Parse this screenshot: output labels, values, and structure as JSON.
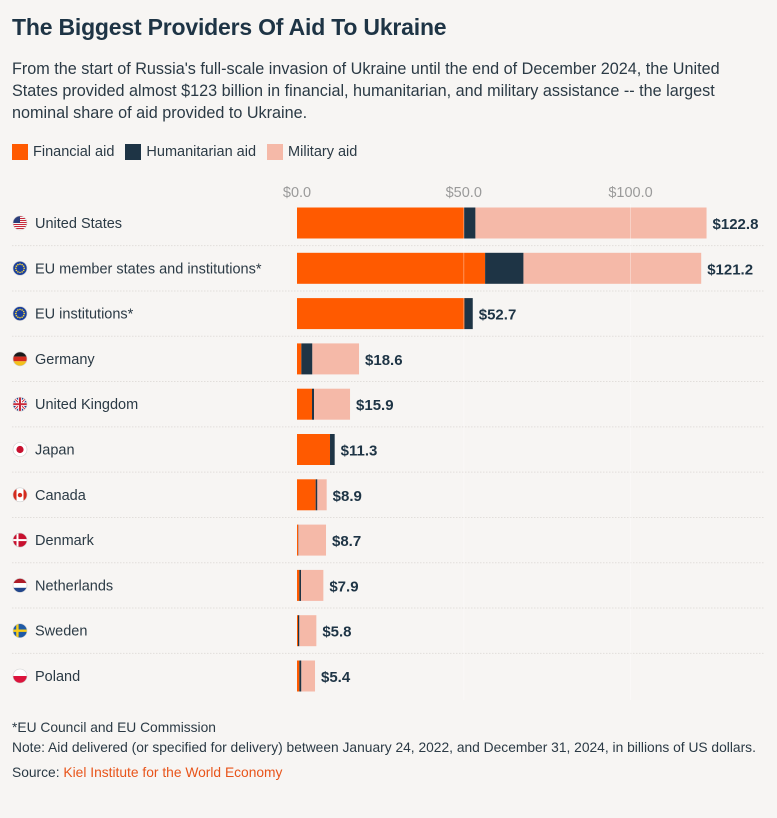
{
  "header": {
    "title": "The Biggest Providers Of Aid To Ukraine",
    "subtitle": "From the start of Russia's full-scale invasion of Ukraine until the end of December 2024, the United States provided almost $123 billion in financial, humanitarian, and military assistance -- the largest nominal share of aid provided to Ukraine."
  },
  "colors": {
    "financial": "#ff5a00",
    "humanitarian": "#1e3445",
    "military": "#f5b9a8",
    "text": "#1e3445",
    "tick": "#9a9a9a",
    "background": "#f7f5f3"
  },
  "legend": [
    {
      "label": "Financial aid",
      "color": "#ff5a00"
    },
    {
      "label": "Humanitarian aid",
      "color": "#1e3445"
    },
    {
      "label": "Military aid",
      "color": "#f5b9a8"
    }
  ],
  "chart_data": {
    "type": "bar",
    "orientation": "horizontal",
    "stacked": true,
    "categories": [
      "United States",
      "EU member states and institutions*",
      "EU institutions*",
      "Germany",
      "United Kingdom",
      "Japan",
      "Canada",
      "Denmark",
      "Netherlands",
      "Sweden",
      "Poland"
    ],
    "flags": [
      "us",
      "eu",
      "eu",
      "de",
      "gb",
      "jp",
      "ca",
      "dk",
      "nl",
      "se",
      "pl"
    ],
    "series": [
      {
        "name": "Financial aid",
        "values": [
          50.1,
          56.4,
          50.2,
          1.3,
          4.5,
          9.9,
          5.6,
          0.3,
          0.7,
          0.3,
          0.7
        ]
      },
      {
        "name": "Humanitarian aid",
        "values": [
          3.4,
          11.5,
          2.5,
          3.3,
          0.6,
          1.4,
          0.5,
          0.1,
          0.5,
          0.4,
          0.6
        ]
      },
      {
        "name": "Military aid",
        "values": [
          69.3,
          53.3,
          0.0,
          14.0,
          10.8,
          0.0,
          2.8,
          8.3,
          6.7,
          5.1,
          4.1
        ]
      }
    ],
    "totals": [
      122.8,
      121.2,
      52.7,
      18.6,
      15.9,
      11.3,
      8.9,
      8.7,
      7.9,
      5.8,
      5.4
    ],
    "total_labels": [
      "$122.8",
      "$121.2",
      "$52.7",
      "$18.6",
      "$15.9",
      "$11.3",
      "$8.9",
      "$8.7",
      "$7.9",
      "$5.8",
      "$5.4"
    ],
    "x_ticks": [
      0,
      50,
      100
    ],
    "x_tick_labels": [
      "$0.0",
      "$50.0",
      "$100.0"
    ],
    "xlim": [
      0,
      125
    ],
    "grid": true,
    "legend_position": "top-left"
  },
  "footer": {
    "footnote": "*EU Council and EU Commission",
    "note": "Note: Aid delivered (or specified for delivery) between January 24, 2022, and December 31, 2024, in billions of US dollars.",
    "source_label": "Source: ",
    "source_name": "Kiel Institute for the World Economy"
  }
}
